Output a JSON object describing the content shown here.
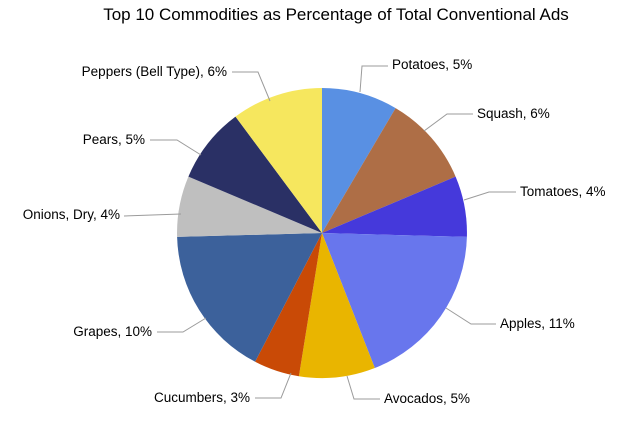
{
  "chart_data": {
    "type": "pie",
    "title": "Top 10 Commodities as Percentage of Total Conventional Ads",
    "unit": "%",
    "label_format": "{category}, {value}%",
    "categories": [
      "Potatoes",
      "Squash",
      "Tomatoes",
      "Apples",
      "Avocados",
      "Cucumbers",
      "Grapes",
      "Onions, Dry",
      "Pears",
      "Peppers (Bell Type)"
    ],
    "values": [
      5,
      6,
      4,
      11,
      5,
      3,
      10,
      4,
      5,
      6
    ],
    "colors": [
      "#5990E3",
      "#AE6E46",
      "#4539DB",
      "#6876ED",
      "#E9B500",
      "#C94A06",
      "#3C619B",
      "#BFBFBF",
      "#2A3065",
      "#F6E75E"
    ],
    "start_angle_deg": 0,
    "direction": "clockwise",
    "legend": "none",
    "background_color": "#FFFFFF",
    "text_color": "#000000",
    "leader_line_color": "#9B9B9B"
  }
}
